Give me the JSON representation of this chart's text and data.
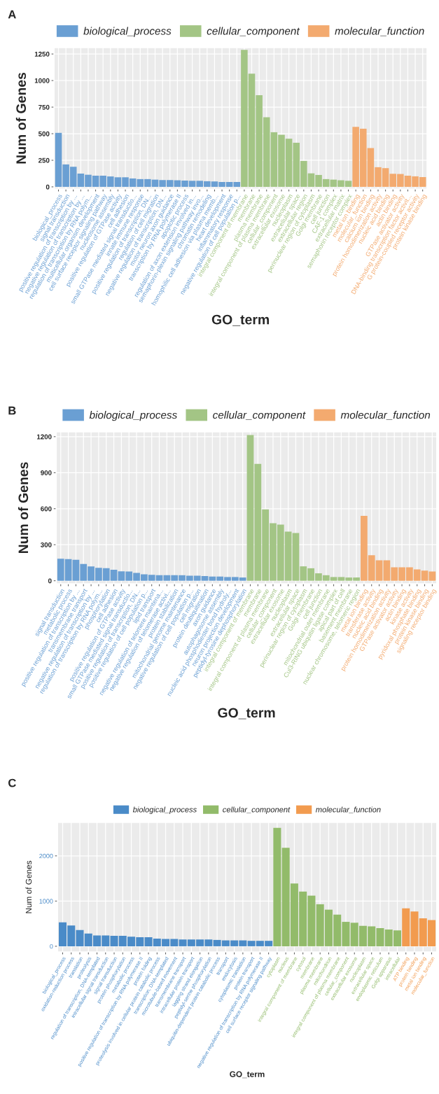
{
  "chart_data": [
    {
      "type": "bar",
      "title": "A",
      "xlabel": "GO_term",
      "ylabel": "Num of Genes",
      "grid": true,
      "legend": "top",
      "ylim": [
        -20,
        1310
      ],
      "yticks": [
        0,
        250,
        500,
        750,
        1000,
        1250
      ],
      "categories": [
        "biological_process",
        "signal transduction",
        "positive regulation of transcription by ...",
        "negative regulation of transcription by ...",
        "regulation of transcription by RNA polym...",
        "multicellular organism development",
        "cell surface receptor signaling pathway",
        "nucleosome assembly",
        "positive regulation of GTPase activity",
        "cell adhesion",
        "small GTPase mediated signal transductio...",
        "innate immune response",
        "positive regulation of transcription, DN...",
        "regulation of cell migration",
        "negative regulation of transcription, DN...",
        "motor neuron axon guidance",
        "transcription by RNA polymerase II",
        "apoptotic process",
        "regulation of axon extension involved in...",
        "semaphorin-plexin signaling pathway invo...",
        "chromatin remodeling",
        "homophilic cell adhesion via plasma memb...",
        "heart development",
        "inflammatory response",
        "negative regulation of cell population p...",
        "integral component of membrane",
        "membrane",
        "plasma membrane",
        "integral component of plasma membrane",
        "cellular_component",
        "extracellular exosome",
        "nucleoplasm",
        "extracellular space",
        "extracellular region",
        "perinuclear region of cytoplasm",
        "Golgi membrane",
        "cell junction",
        "CAF-1 complex",
        "extracellular matrix",
        "semaphorin receptor complex",
        "metal ion binding",
        "molecular_function",
        "calcium ion binding",
        "protein homodimerization activity",
        "nucleic acid binding",
        "actin binding",
        "GTPase activator activity",
        "DNA-binding transcription factor activit...",
        "G protein-coupled receptor activity",
        "protein kinase binding"
      ],
      "series": [
        {
          "name": "biological_process",
          "color": "#6a9fd3",
          "values": [
            508,
            211,
            189,
            125,
            114,
            105,
            105,
            98,
            90,
            90,
            79,
            73,
            73,
            68,
            64,
            64,
            62,
            59,
            57,
            57,
            53,
            51,
            46,
            46,
            46,
            null,
            null,
            null,
            null,
            null,
            null,
            null,
            null,
            null,
            null,
            null,
            null,
            null,
            null,
            null,
            null,
            null,
            null,
            null,
            null,
            null,
            null,
            null,
            null,
            null
          ]
        },
        {
          "name": "cellular_component",
          "color": "#a3c585",
          "values": [
            null,
            null,
            null,
            null,
            null,
            null,
            null,
            null,
            null,
            null,
            null,
            null,
            null,
            null,
            null,
            null,
            null,
            null,
            null,
            null,
            null,
            null,
            null,
            null,
            null,
            1288,
            1064,
            862,
            655,
            514,
            490,
            453,
            415,
            244,
            127,
            112,
            73,
            68,
            62,
            57,
            null,
            null,
            null,
            null,
            null,
            null,
            null,
            null,
            null,
            null
          ]
        },
        {
          "name": "molecular_function",
          "color": "#f3aa6f",
          "values": [
            null,
            null,
            null,
            null,
            null,
            null,
            null,
            null,
            null,
            null,
            null,
            null,
            null,
            null,
            null,
            null,
            null,
            null,
            null,
            null,
            null,
            null,
            null,
            null,
            null,
            null,
            null,
            null,
            null,
            null,
            null,
            null,
            null,
            null,
            null,
            null,
            null,
            null,
            null,
            null,
            565,
            547,
            365,
            185,
            176,
            123,
            121,
            105,
            99,
            92
          ]
        }
      ]
    },
    {
      "type": "bar",
      "title": "B",
      "xlabel": "GO_term",
      "ylabel": "Num of Genes",
      "grid": true,
      "legend": "top",
      "ylim": [
        -25,
        1240
      ],
      "yticks": [
        0,
        300,
        600,
        900,
        1200
      ],
      "categories": [
        "signal transduction",
        "metabolic process",
        "positive regulation of transcription by ...",
        "transmembrane transport",
        "negative regulation of transcription by ...",
        "regulation of transcription by RNA polym...",
        "phosphorylation",
        "cell adhesion",
        "positive regulation of GTPase activity",
        "small GTPase mediated signal transductio...",
        "positive regulation of transcription, DN...",
        "positive regulation of cell population p...",
        "lipid transport",
        "negative regulation of telomere maintena...",
        "negative regulation of telomerase activi...",
        "protein stabilization",
        "mitochondrial genome maintenance",
        "negative regulation of cell population p...",
        "cell migration",
        "protein deubiquitination",
        "axon guidance",
        "autophagosome assembly",
        "nucleic acid phosphodiester bond hydroly...",
        "neuron projection development",
        "peptidyl-tyrosine dephosphorylation",
        "integral component of membrane",
        "membrane",
        "integral component of plasma membrane",
        "cellular_component",
        "extracellular exosome",
        "nucleoplasm",
        "extracellular space",
        "perinuclear region of cytoplasm",
        "Golgi membrane",
        "cell junction",
        "mitochondrial outer membrane",
        "Cul3-RING ubiquitin ligase complex",
        "apical part of cell",
        "basement membrane",
        "nuclear chromosome, telomeric region",
        "metal ion binding",
        "transferase activity",
        "nucleic acid binding",
        "protein homodimerization activity",
        "GTPase activator activity",
        "actin binding",
        "kinase activity",
        "pyridoxal phosphate binding",
        "protein kinase binding",
        "signaling receptor binding"
      ],
      "series": [
        {
          "name": "biological_process",
          "color": "#6a9fd3",
          "values": [
            183,
            181,
            174,
            139,
            120,
            108,
            104,
            91,
            79,
            77,
            66,
            54,
            50,
            46,
            46,
            46,
            46,
            42,
            42,
            39,
            35,
            35,
            31,
            31,
            27,
            null,
            null,
            null,
            null,
            null,
            null,
            null,
            null,
            null,
            null,
            null,
            null,
            null,
            null,
            null,
            null,
            null,
            null,
            null,
            null,
            null,
            null,
            null,
            null,
            null
          ]
        },
        {
          "name": "cellular_component",
          "color": "#a3c585",
          "values": [
            null,
            null,
            null,
            null,
            null,
            null,
            null,
            null,
            null,
            null,
            null,
            null,
            null,
            null,
            null,
            null,
            null,
            null,
            null,
            null,
            null,
            null,
            null,
            null,
            null,
            1214,
            973,
            595,
            479,
            467,
            409,
            398,
            120,
            104,
            62,
            46,
            31,
            31,
            27,
            27,
            null,
            null,
            null,
            null,
            null,
            null,
            null,
            null,
            null,
            null
          ]
        },
        {
          "name": "molecular_function",
          "color": "#f3aa6f",
          "values": [
            null,
            null,
            null,
            null,
            null,
            null,
            null,
            null,
            null,
            null,
            null,
            null,
            null,
            null,
            null,
            null,
            null,
            null,
            null,
            null,
            null,
            null,
            null,
            null,
            null,
            null,
            null,
            null,
            null,
            null,
            null,
            null,
            null,
            null,
            null,
            null,
            null,
            null,
            null,
            null,
            541,
            212,
            170,
            170,
            112,
            112,
            112,
            95,
            85,
            77
          ]
        }
      ]
    },
    {
      "type": "bar",
      "title": "C",
      "xlabel": "GO_term",
      "ylabel": "Num of Genes",
      "grid": true,
      "legend": "top",
      "ylim": [
        -125,
        2740
      ],
      "yticks": [
        0,
        1000,
        2000
      ],
      "categories": [
        "biological_process",
        "oxidation-reduction process",
        "translation",
        "proteolysis",
        "regulation of transcription, DNA-templated",
        "intracellular signal transduction",
        "signal transduction",
        "protein phosphorylation",
        "metabolic process",
        "positive regulation of transcription by RNA polymerase II",
        "protein folding",
        "proteolysis involved in cellular protein catabolic process",
        "transcription, DNA-templated",
        "microtubule-based movement",
        "transmembrane transport",
        "intracellular protein transport",
        "lagging strand elongation",
        "peptidyl-serine phosphorylation",
        "ubiquitin-dependent protein catabolic process",
        "transport",
        "endocytosis",
        "cytoplasmic translation",
        "protein transport",
        "negative regulation of transcription by RNA polymerase II",
        "cell surface receptor signaling pathway",
        "cytoplasm",
        "nucleus",
        "integral component of membrane",
        "cytosol",
        "membrane",
        "plasma membrane",
        "mitochondrion",
        "integral component of plasma membrane",
        "cellular_component",
        "extracellular exosome",
        "nucleoplasm",
        "extracellular space",
        "endoplasmic reticulum",
        "Golgi apparatus",
        "intracellular",
        "ATP binding",
        "protein binding",
        "metal ion binding",
        "molecular_function"
      ],
      "series": [
        {
          "name": "biological_process",
          "color": "#4a8bc8",
          "values": [
            530,
            460,
            360,
            280,
            240,
            240,
            230,
            230,
            210,
            200,
            200,
            170,
            160,
            160,
            150,
            150,
            150,
            150,
            140,
            130,
            130,
            130,
            120,
            120,
            120,
            null,
            null,
            null,
            null,
            null,
            null,
            null,
            null,
            null,
            null,
            null,
            null,
            null,
            null,
            null,
            null,
            null,
            null,
            null
          ]
        },
        {
          "name": "cellular_component",
          "color": "#92bb6a",
          "values": [
            null,
            null,
            null,
            null,
            null,
            null,
            null,
            null,
            null,
            null,
            null,
            null,
            null,
            null,
            null,
            null,
            null,
            null,
            null,
            null,
            null,
            null,
            null,
            null,
            null,
            2620,
            2180,
            1390,
            1210,
            1120,
            930,
            810,
            700,
            540,
            520,
            450,
            440,
            400,
            370,
            350,
            null,
            null,
            null,
            null
          ]
        },
        {
          "name": "molecular_function",
          "color": "#f29b4f",
          "values": [
            null,
            null,
            null,
            null,
            null,
            null,
            null,
            null,
            null,
            null,
            null,
            null,
            null,
            null,
            null,
            null,
            null,
            null,
            null,
            null,
            null,
            null,
            null,
            null,
            null,
            null,
            null,
            null,
            null,
            null,
            null,
            null,
            null,
            null,
            null,
            null,
            null,
            null,
            null,
            null,
            840,
            770,
            620,
            580
          ]
        }
      ]
    }
  ]
}
